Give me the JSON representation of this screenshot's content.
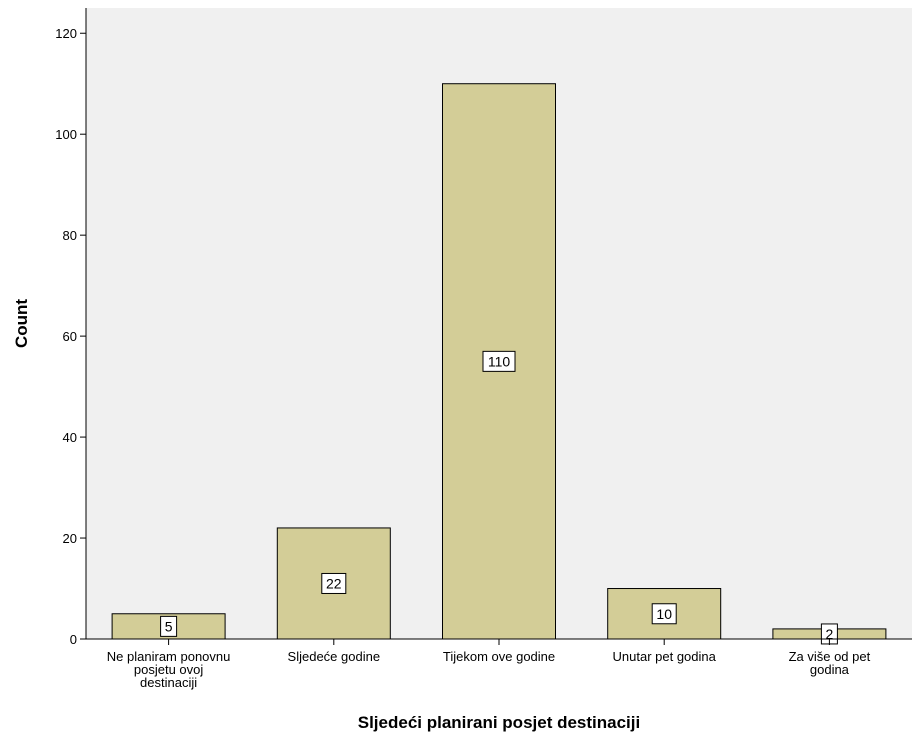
{
  "chart_data": {
    "type": "bar",
    "categories": [
      [
        "Ne planiram ponovnu",
        "posjetu ovoj",
        "destinaciji"
      ],
      [
        "Sljedeće godine"
      ],
      [
        "Tijekom ove godine"
      ],
      [
        "Unutar pet godina"
      ],
      [
        "Za više od pet",
        "godina"
      ]
    ],
    "values": [
      5,
      22,
      110,
      10,
      2
    ],
    "data_labels": [
      "5",
      "22",
      "110",
      "10",
      "2"
    ],
    "xlabel": "Sljedeći planirani posjet destinaciji",
    "ylabel": "Count",
    "ylim": [
      0,
      125
    ],
    "yticks": [
      0,
      20,
      40,
      60,
      80,
      100,
      120
    ],
    "grid": false,
    "colors": {
      "bar_fill": "#d3cd97",
      "bar_stroke": "#000000",
      "plot_background": "#f0f0f0",
      "axis": "#000000"
    }
  }
}
